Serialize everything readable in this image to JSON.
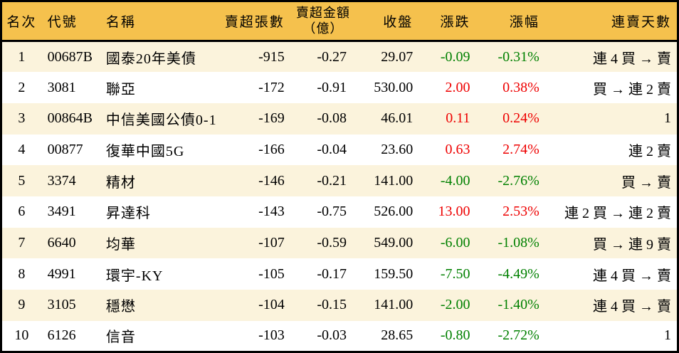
{
  "colors": {
    "header_bg": "#F5C14D",
    "row_alt_bg": "#FBF3DC",
    "row_bg": "#FFFFFF",
    "up": "#EE0000",
    "down": "#008000",
    "border": "#000000"
  },
  "chart_data": {
    "type": "table",
    "title": "",
    "legend": "none",
    "columns": [
      {
        "key": "rank",
        "label": "名次",
        "align": "center"
      },
      {
        "key": "code",
        "label": "代號",
        "align": "left"
      },
      {
        "key": "name",
        "label": "名稱",
        "align": "left"
      },
      {
        "key": "volume",
        "label": "賣超張數",
        "align": "right"
      },
      {
        "key": "amount",
        "label": "賣超金額",
        "label2": "（億）",
        "align": "right"
      },
      {
        "key": "close",
        "label": "收盤",
        "align": "right"
      },
      {
        "key": "change",
        "label": "漲跌",
        "align": "right"
      },
      {
        "key": "change_pct",
        "label": "漲幅",
        "align": "right"
      },
      {
        "key": "streak",
        "label": "連賣天數",
        "align": "right"
      }
    ],
    "rows": [
      {
        "rank": "1",
        "code": "00687B",
        "name": "國泰20年美債",
        "volume": "-915",
        "amount": "-0.27",
        "close": "29.07",
        "change": "-0.09",
        "change_pct": "-0.31%",
        "trend": "down",
        "streak": "連 4 買 → 賣"
      },
      {
        "rank": "2",
        "code": "3081",
        "name": "聯亞",
        "volume": "-172",
        "amount": "-0.91",
        "close": "530.00",
        "change": "2.00",
        "change_pct": "0.38%",
        "trend": "up",
        "streak": "買 → 連 2 賣"
      },
      {
        "rank": "3",
        "code": "00864B",
        "name": "中信美國公債0-1",
        "volume": "-169",
        "amount": "-0.08",
        "close": "46.01",
        "change": "0.11",
        "change_pct": "0.24%",
        "trend": "up",
        "streak": "1"
      },
      {
        "rank": "4",
        "code": "00877",
        "name": "復華中國5G",
        "volume": "-166",
        "amount": "-0.04",
        "close": "23.60",
        "change": "0.63",
        "change_pct": "2.74%",
        "trend": "up",
        "streak": "連 2 賣"
      },
      {
        "rank": "5",
        "code": "3374",
        "name": "精材",
        "volume": "-146",
        "amount": "-0.21",
        "close": "141.00",
        "change": "-4.00",
        "change_pct": "-2.76%",
        "trend": "down",
        "streak": "買 → 賣"
      },
      {
        "rank": "6",
        "code": "3491",
        "name": "昇達科",
        "volume": "-143",
        "amount": "-0.75",
        "close": "526.00",
        "change": "13.00",
        "change_pct": "2.53%",
        "trend": "up",
        "streak": "連 2 買 → 連 2 賣"
      },
      {
        "rank": "7",
        "code": "6640",
        "name": "均華",
        "volume": "-107",
        "amount": "-0.59",
        "close": "549.00",
        "change": "-6.00",
        "change_pct": "-1.08%",
        "trend": "down",
        "streak": "買 → 連 9 賣"
      },
      {
        "rank": "8",
        "code": "4991",
        "name": "環宇-KY",
        "volume": "-105",
        "amount": "-0.17",
        "close": "159.50",
        "change": "-7.50",
        "change_pct": "-4.49%",
        "trend": "down",
        "streak": "連 4 買 → 賣"
      },
      {
        "rank": "9",
        "code": "3105",
        "name": "穩懋",
        "volume": "-104",
        "amount": "-0.15",
        "close": "141.00",
        "change": "-2.00",
        "change_pct": "-1.40%",
        "trend": "down",
        "streak": "連 4 買 → 賣"
      },
      {
        "rank": "10",
        "code": "6126",
        "name": "信音",
        "volume": "-103",
        "amount": "-0.03",
        "close": "28.65",
        "change": "-0.80",
        "change_pct": "-2.72%",
        "trend": "down",
        "streak": "1"
      }
    ]
  }
}
